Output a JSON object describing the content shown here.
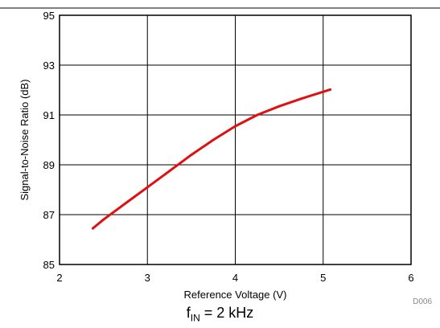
{
  "chart_data": {
    "type": "line",
    "title": "",
    "xlabel": "Reference Voltage (V)",
    "ylabel": "Signal-to-Noise Ratio (dB)",
    "xlim": [
      2,
      6
    ],
    "ylim": [
      85,
      95
    ],
    "x_ticks": [
      "2",
      "3",
      "4",
      "5",
      "6"
    ],
    "y_ticks": [
      "85",
      "87",
      "89",
      "91",
      "93",
      "95"
    ],
    "grid": true,
    "figure_id": "D006",
    "series": [
      {
        "color": "#e01010",
        "x": [
          2.38,
          2.5,
          2.75,
          3.0,
          3.25,
          3.5,
          3.75,
          4.0,
          4.25,
          4.5,
          4.75,
          5.08
        ],
        "y": [
          86.45,
          86.8,
          87.45,
          88.1,
          88.75,
          89.4,
          90.0,
          90.55,
          91.0,
          91.35,
          91.65,
          92.02
        ]
      }
    ]
  },
  "caption": {
    "prefix": "f",
    "subscript": "IN",
    "suffix": " = 2 kHz"
  }
}
